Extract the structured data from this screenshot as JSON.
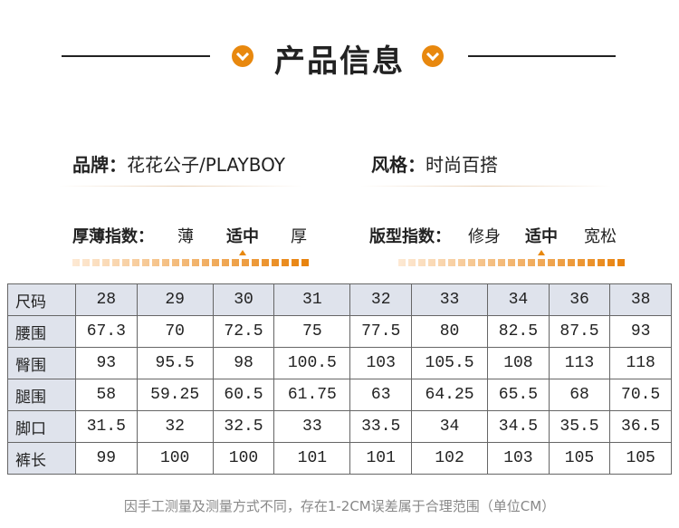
{
  "header": {
    "title": "产品信息"
  },
  "attributes": [
    {
      "label": "品牌：",
      "value": "花花公子/PLAYBOY"
    },
    {
      "label": "风格：",
      "value": "时尚百搭"
    }
  ],
  "indices": [
    {
      "label": "厚薄指数：",
      "options": [
        "薄",
        "适中",
        "厚"
      ],
      "selected": 1
    },
    {
      "label": "版型指数：",
      "options": [
        "修身",
        "适中",
        "宽松"
      ],
      "selected": 1
    }
  ],
  "table": {
    "rows": [
      [
        "尺码",
        "28",
        "29",
        "30",
        "31",
        "32",
        "33",
        "34",
        "36",
        "38"
      ],
      [
        "腰围",
        "67.3",
        "70",
        "72.5",
        "75",
        "77.5",
        "80",
        "82.5",
        "87.5",
        "93"
      ],
      [
        "臀围",
        "93",
        "95.5",
        "98",
        "100.5",
        "103",
        "105.5",
        "108",
        "113",
        "118"
      ],
      [
        "腿围",
        "58",
        "59.25",
        "60.5",
        "61.75",
        "63",
        "64.25",
        "65.5",
        "68",
        "70.5"
      ],
      [
        "脚口",
        "31.5",
        "32",
        "32.5",
        "33",
        "33.5",
        "34",
        "34.5",
        "35.5",
        "36.5"
      ],
      [
        "裤长",
        "99",
        "100",
        "100",
        "101",
        "101",
        "102",
        "103",
        "105",
        "105"
      ]
    ]
  },
  "footer": {
    "note": "因手工测量及测量方式不同，存在1-2CM误差属于合理范围（单位CM）"
  }
}
